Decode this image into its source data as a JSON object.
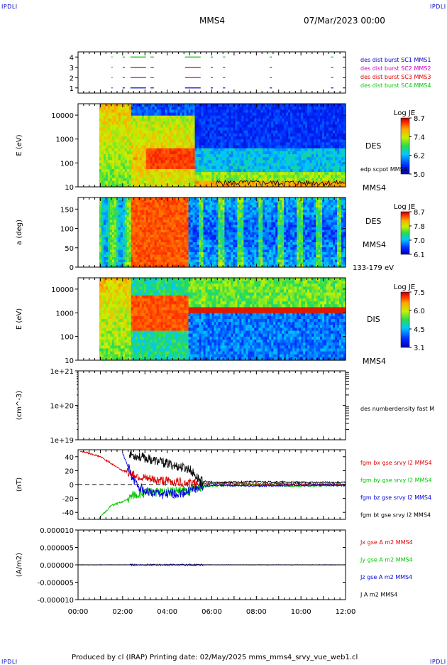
{
  "header": {
    "logo_left": "IPDLI",
    "logo_right": "IPDLI",
    "spacecraft": "MMS4",
    "date": "07/Mar/2023 00:00"
  },
  "footer": {
    "text": "Produced by cl (IRAP)   Printing date: 02/May/2025   mms_mms4_srvy_vue_web1.cl",
    "logo_left": "IPDLI",
    "logo_right": "IPDLI"
  },
  "colors": {
    "mms1": "#0000c8",
    "mms2": "#c800c8",
    "mms3": "#dc0000",
    "mms4": "#00c800",
    "bx": "#dc0000",
    "by": "#00c800",
    "bz": "#0000dc",
    "bt": "#000000"
  },
  "chart_data": [
    {
      "type": "timeline",
      "id": "burst",
      "ylim": [
        0.5,
        4.5
      ],
      "yticks": [
        "1",
        "2",
        "3",
        "4"
      ],
      "legend": [
        {
          "label": "des dist burst SC1 MMS1",
          "color": "#0000c8"
        },
        {
          "label": "des dist burst SC2 MMS2",
          "color": "#c800c8"
        },
        {
          "label": "des dist burst SC3 MMS3",
          "color": "#dc0000"
        },
        {
          "label": "des dist burst SC4 MMS4",
          "color": "#00c800"
        }
      ],
      "intervals_hours": [
        [
          1.5,
          1.55
        ],
        [
          2.0,
          2.1
        ],
        [
          2.35,
          3.05
        ],
        [
          3.25,
          3.4
        ],
        [
          4.8,
          5.5
        ],
        [
          5.95,
          6.05
        ],
        [
          6.5,
          6.6
        ],
        [
          8.6,
          8.7
        ],
        [
          11.35,
          11.45
        ]
      ]
    },
    {
      "type": "heatmap",
      "id": "des-energy",
      "instrument": "DES",
      "ylabel": "E (eV)",
      "yscale": "log",
      "ylim": [
        10,
        30000
      ],
      "yticks": [
        "10",
        "100",
        "1000",
        "10000"
      ],
      "colorbar": {
        "title": "Log JE",
        "ticks": [
          "8.7",
          "7.4",
          "6.2",
          "5.0"
        ],
        "range": [
          5.0,
          8.7
        ]
      },
      "side_labels": [
        "DES",
        "edp scpot MMS4",
        "MMS4"
      ],
      "overlay": "edp scpot MMS4"
    },
    {
      "type": "heatmap",
      "id": "des-pitch",
      "instrument": "DES",
      "ylabel": "a (deg)",
      "ylim": [
        0,
        180
      ],
      "yticks": [
        "0",
        "50",
        "100",
        "150"
      ],
      "colorbar": {
        "title": "Log JE",
        "ticks": [
          "8.7",
          "7.8",
          "7.0",
          "6.1"
        ],
        "range": [
          6.1,
          8.7
        ]
      },
      "side_labels": [
        "DES",
        "MMS4",
        "133-179 eV"
      ]
    },
    {
      "type": "heatmap",
      "id": "dis-energy",
      "instrument": "DIS",
      "ylabel": "E (eV)",
      "yscale": "log",
      "ylim": [
        10,
        30000
      ],
      "yticks": [
        "10",
        "100",
        "1000",
        "10000"
      ],
      "colorbar": {
        "title": "Log JE",
        "ticks": [
          "7.5",
          "6.0",
          "4.5",
          "3.1"
        ],
        "range": [
          3.1,
          7.5
        ]
      },
      "side_labels": [
        "DIS",
        "MMS4"
      ]
    },
    {
      "type": "line",
      "id": "density",
      "ylabel": "(cm^-3)",
      "yscale": "log",
      "ylim": [
        1e+19,
        1e+21
      ],
      "yticks": [
        "1e+19",
        "1e+20",
        "1e+21"
      ],
      "legend": [
        {
          "label": "des numberdensity fast M",
          "color": "#000000"
        }
      ],
      "series": []
    },
    {
      "type": "line",
      "id": "fgm",
      "ylabel": "(nT)",
      "ylim": [
        -50,
        50
      ],
      "yticks": [
        "-40",
        "-20",
        "0",
        "20",
        "40"
      ],
      "legend": [
        {
          "label": "fgm bx gse srvy l2 MMS4",
          "color": "#dc0000"
        },
        {
          "label": "fgm by gse srvy l2 MMS4",
          "color": "#00c800"
        },
        {
          "label": "fgm bz gse srvy l2 MMS4",
          "color": "#0000dc"
        },
        {
          "label": "fgm bt gse srvy l2 MMS4",
          "color": "#000000"
        }
      ],
      "series": [
        {
          "name": "fgm bx gse srvy l2 MMS4",
          "x_hours": [
            0.1,
            0.5,
            1.0,
            1.5,
            2.0,
            2.3,
            2.5,
            3.0,
            4.0,
            5.0,
            5.5,
            6.0,
            8.0,
            10.0,
            12.0
          ],
          "y": [
            48,
            45,
            40,
            30,
            20,
            18,
            15,
            8,
            5,
            2,
            0,
            2,
            1,
            1,
            0
          ]
        },
        {
          "name": "fgm by gse srvy l2 MMS4",
          "x_hours": [
            0.9,
            1.2,
            1.5,
            2.0,
            2.3,
            2.5,
            3.0,
            4.0,
            5.0,
            5.5,
            6.0,
            8.0,
            10.0,
            12.0
          ],
          "y": [
            -50,
            -40,
            -30,
            -25,
            -20,
            -15,
            -12,
            -10,
            -8,
            -3,
            -2,
            -1,
            -2,
            -1
          ]
        },
        {
          "name": "fgm bz gse srvy l2 MMS4",
          "x_hours": [
            2.0,
            2.5,
            3.0,
            4.0,
            5.0,
            5.5,
            6.0,
            8.0,
            10.0,
            12.0
          ],
          "y": [
            45,
            5,
            -10,
            -15,
            -10,
            -3,
            -1,
            -2,
            -1,
            -1
          ]
        },
        {
          "name": "fgm bt gse srvy l2 MMS4",
          "x_hours": [
            2.3,
            2.5,
            3.0,
            4.0,
            5.0,
            5.5,
            6.0,
            8.0,
            10.0,
            12.0
          ],
          "y": [
            45,
            42,
            38,
            30,
            22,
            5,
            3,
            4,
            3,
            3
          ]
        }
      ]
    },
    {
      "type": "line",
      "id": "current",
      "ylabel": "(A/m2)",
      "ylim": [
        -1e-05,
        1e-05
      ],
      "yticks": [
        "-0.000010",
        "-0.000005",
        "0.000000",
        "0.000005",
        "0.000010"
      ],
      "legend": [
        {
          "label": "Jx gse A m2 MMS4",
          "color": "#dc0000"
        },
        {
          "label": "Jy gse A m2 MMS4",
          "color": "#00c800"
        },
        {
          "label": "Jz gse A m2 MMS4",
          "color": "#0000dc"
        },
        {
          "label": "J A m2 MMS4",
          "color": "#000000"
        }
      ],
      "series": [
        {
          "name": "J A m2 MMS4",
          "x_hours": [
            0.0,
            12.0
          ],
          "y": [
            0.0,
            0.0
          ]
        }
      ]
    }
  ],
  "xaxis": {
    "ticks": [
      "00:00",
      "02:00",
      "04:00",
      "06:00",
      "08:00",
      "10:00",
      "12:00"
    ],
    "range_hours": [
      0,
      12
    ]
  }
}
